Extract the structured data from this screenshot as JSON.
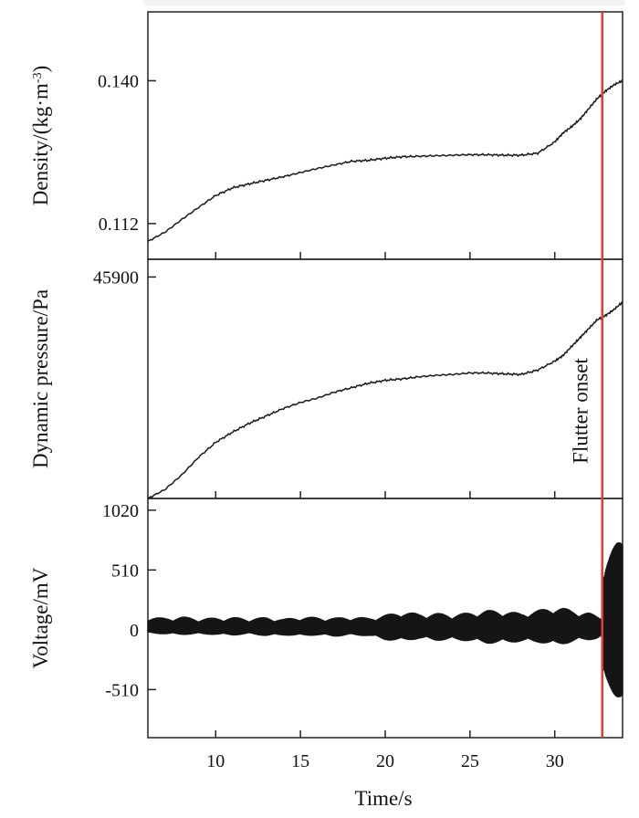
{
  "chart_data": {
    "type": "line",
    "xlabel": "Time/s",
    "xlim": [
      6,
      34
    ],
    "x_ticks": [
      10,
      15,
      20,
      25,
      30
    ],
    "annotation": {
      "label": "Flutter onset",
      "x": 32.8,
      "color": "#e63a2e"
    },
    "panels": [
      {
        "id": "density",
        "ylabel": "Density/(kg·m",
        "ylabel_superscript": "-3",
        "ylabel_close": ")",
        "ylim": [
          0.105,
          0.1535
        ],
        "y_ticks": [
          {
            "value": 0.112,
            "label": "0.112"
          },
          {
            "value": 0.14,
            "label": "0.140"
          }
        ],
        "series": [
          {
            "type": "line",
            "x": [
              6,
              7,
              8,
              9,
              10,
              11,
              12,
              13,
              14,
              15,
              16,
              17,
              18,
              19,
              20,
              21,
              22,
              23,
              24,
              25,
              26,
              27,
              28,
              29,
              30,
              30.5,
              31,
              31.5,
              32,
              32.5,
              33,
              33.5,
              34
            ],
            "y": [
              0.1085,
              0.1103,
              0.1128,
              0.1152,
              0.1175,
              0.119,
              0.1198,
              0.1205,
              0.1212,
              0.122,
              0.1228,
              0.1235,
              0.1242,
              0.1244,
              0.1248,
              0.1251,
              0.1252,
              0.1253,
              0.1254,
              0.1255,
              0.1255,
              0.1254,
              0.1254,
              0.1258,
              0.128,
              0.1298,
              0.131,
              0.1325,
              0.1345,
              0.1365,
              0.138,
              0.1392,
              0.14
            ]
          }
        ]
      },
      {
        "id": "dynamic-pressure",
        "ylabel": "Dynamic pressure/Pa",
        "ylim": [
          38400,
          46500
        ],
        "y_ticks": [
          {
            "value": 45900,
            "label": "45900"
          }
        ],
        "series": [
          {
            "type": "line",
            "x": [
              6,
              7,
              8,
              9,
              10,
              11,
              12,
              13,
              14,
              15,
              16,
              17,
              18,
              19,
              20,
              21,
              22,
              23,
              24,
              25,
              26,
              27,
              28,
              29,
              30,
              30.5,
              31,
              31.5,
              32,
              32.5,
              33,
              33.5,
              34
            ],
            "y": [
              38400,
              38700,
              39200,
              39800,
              40300,
              40650,
              40950,
              41200,
              41450,
              41650,
              41800,
              42000,
              42150,
              42300,
              42400,
              42450,
              42520,
              42570,
              42600,
              42650,
              42650,
              42620,
              42600,
              42750,
              43050,
              43250,
              43550,
              43850,
              44150,
              44450,
              44600,
              44800,
              45050
            ]
          }
        ]
      },
      {
        "id": "voltage",
        "ylabel": "Voltage/mV",
        "ylim": [
          -920,
          1120
        ],
        "y_ticks": [
          {
            "value": 1020,
            "label": "1020"
          },
          {
            "value": 510,
            "label": "510"
          },
          {
            "value": 0,
            "label": "0"
          },
          {
            "value": -510,
            "label": "-510"
          }
        ],
        "series": [
          {
            "type": "area",
            "description_values": "amplitude envelope of oscillating signal",
            "x": [
              6,
              7,
              8,
              9,
              10,
              11,
              12,
              13,
              14,
              15,
              16,
              17,
              18,
              19,
              20,
              21,
              22,
              23,
              24,
              25,
              26,
              27,
              28,
              29,
              30,
              30.5,
              31,
              31.5,
              32,
              32.5,
              32.8,
              32.81,
              33,
              33.5,
              34
            ],
            "upper": [
              110,
              105,
              115,
              100,
              105,
              110,
              100,
              110,
              95,
              115,
              110,
              105,
              115,
              105,
              130,
              160,
              140,
              145,
              135,
              150,
              170,
              165,
              145,
              170,
              200,
              190,
              170,
              160,
              150,
              120,
              110,
              600,
              680,
              720,
              780
            ],
            "lower": [
              -30,
              -40,
              -45,
              -40,
              -45,
              -50,
              -40,
              -55,
              -50,
              -55,
              -50,
              -60,
              -50,
              -55,
              -90,
              -100,
              -80,
              -95,
              -90,
              -100,
              -120,
              -115,
              -105,
              -110,
              -135,
              -125,
              -110,
              -95,
              -90,
              -80,
              -60,
              -460,
              -520,
              -560,
              -600
            ]
          }
        ]
      }
    ]
  }
}
